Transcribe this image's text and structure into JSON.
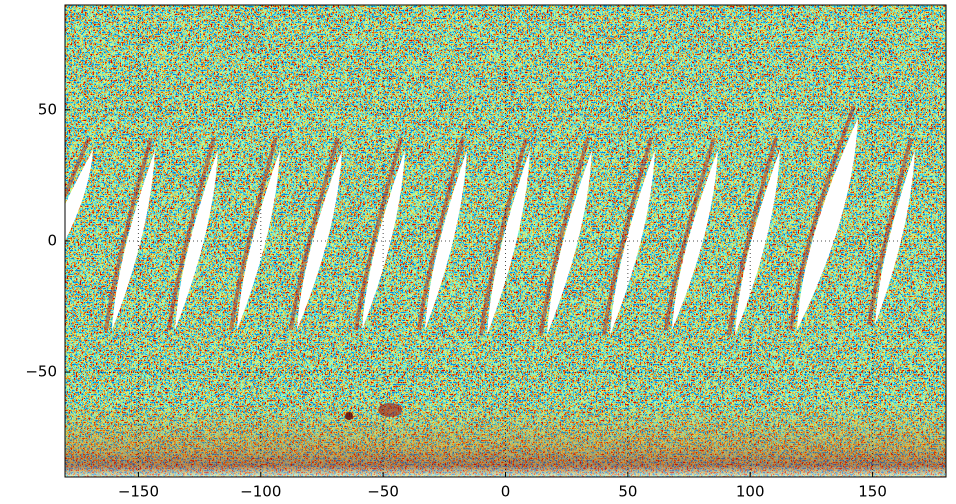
{
  "chart_data": {
    "type": "heatmap",
    "xlim": [
      -180,
      180
    ],
    "ylim": [
      -90,
      90
    ],
    "xticks": [
      {
        "value": -150,
        "label": "−150"
      },
      {
        "value": -100,
        "label": "−100"
      },
      {
        "value": -50,
        "label": "−50"
      },
      0,
      50,
      100,
      150
    ],
    "yticks": [
      {
        "value": -50,
        "label": "−50"
      },
      0,
      50
    ],
    "grid": true
  }
}
